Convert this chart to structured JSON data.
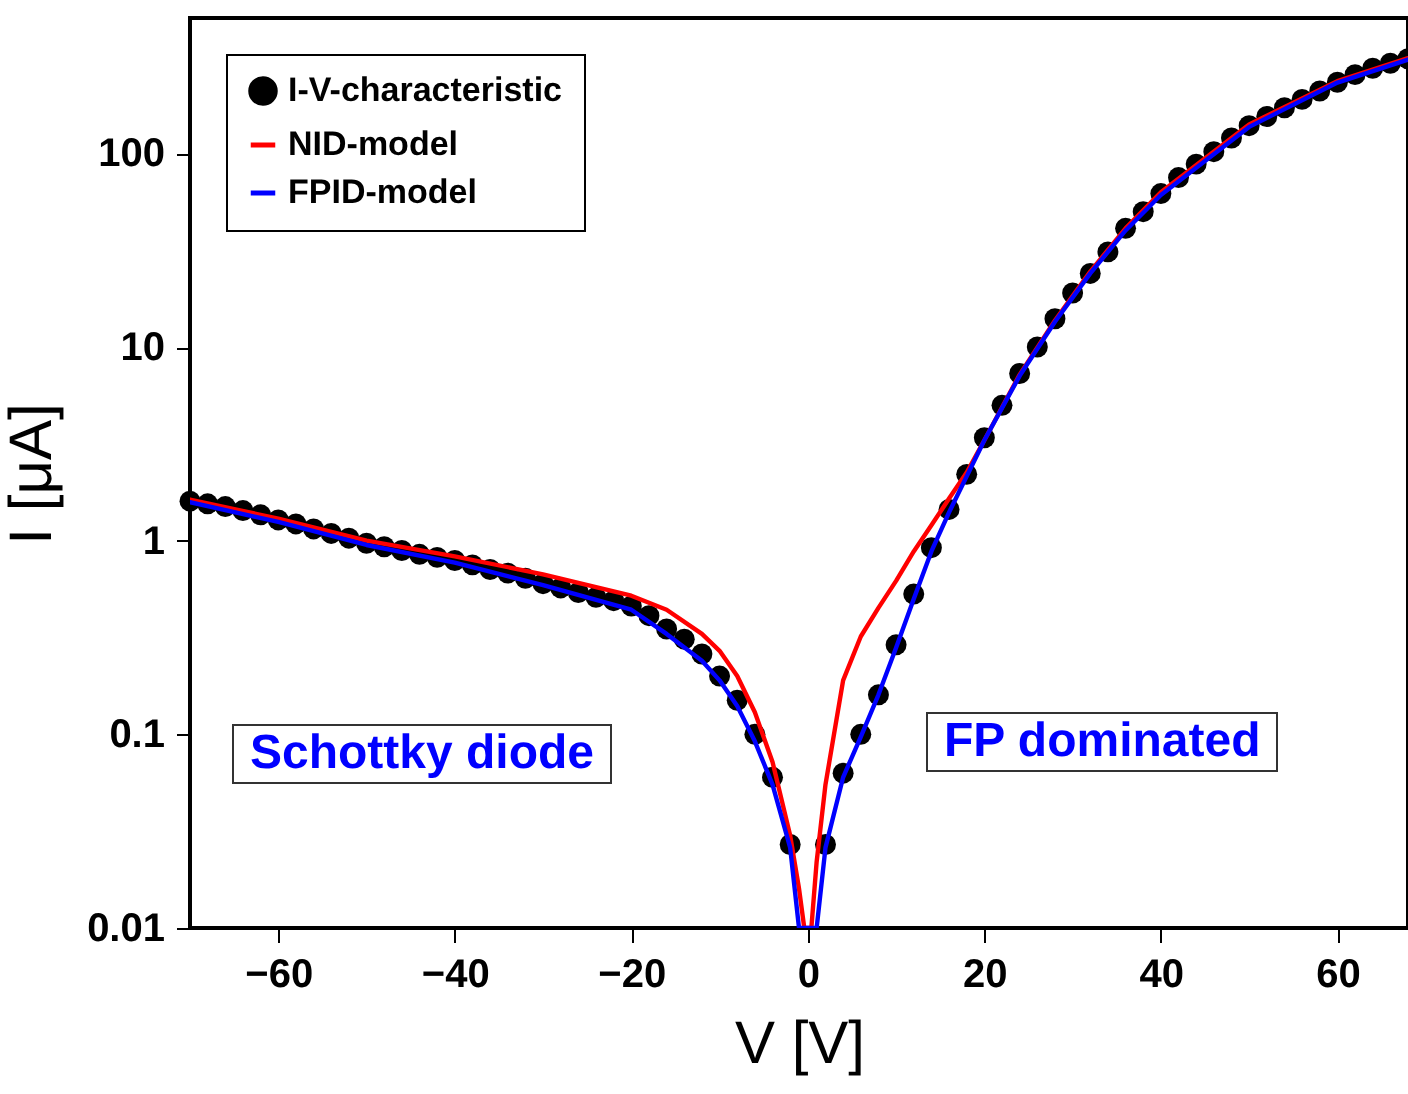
{
  "chart_data": {
    "type": "scatter",
    "xlabel": "V [V]",
    "ylabel": "I [μA]",
    "xlim": [
      -70,
      68
    ],
    "ylim": [
      0.01,
      500
    ],
    "xticks": [
      -60,
      -40,
      -20,
      0,
      20,
      40,
      60
    ],
    "yticks": [
      0.01,
      0.1,
      1,
      10,
      100
    ],
    "log": "y",
    "legend": "top left",
    "annotations": [
      "Schottky diode",
      "FP dominated"
    ],
    "series": [
      {
        "name": "I-V-characteristic",
        "marker": "circle",
        "color": "#000000",
        "x": [
          -70,
          -68,
          -66,
          -64,
          -62,
          -60,
          -58,
          -56,
          -54,
          -52,
          -50,
          -48,
          -46,
          -44,
          -42,
          -40,
          -38,
          -36,
          -34,
          -32,
          -30,
          -28,
          -26,
          -24,
          -22,
          -20,
          -18,
          -16,
          -14,
          -12,
          -10,
          -8,
          -6,
          -4,
          -2,
          2,
          4,
          6,
          8,
          10,
          12,
          14,
          16,
          18,
          20,
          22,
          24,
          26,
          28,
          30,
          32,
          34,
          36,
          38,
          40,
          42,
          44,
          46,
          48,
          50,
          52,
          54,
          56,
          58,
          60,
          62,
          64,
          66,
          68
        ],
        "values": [
          1.6,
          1.55,
          1.5,
          1.43,
          1.36,
          1.28,
          1.22,
          1.15,
          1.09,
          1.03,
          0.97,
          0.93,
          0.89,
          0.85,
          0.82,
          0.79,
          0.75,
          0.71,
          0.68,
          0.64,
          0.6,
          0.57,
          0.54,
          0.51,
          0.49,
          0.46,
          0.41,
          0.35,
          0.31,
          0.26,
          0.2,
          0.15,
          0.1,
          0.06,
          0.027,
          0.027,
          0.063,
          0.1,
          0.16,
          0.29,
          0.53,
          0.92,
          1.45,
          2.2,
          3.4,
          5,
          7.3,
          10,
          14,
          19,
          24,
          31,
          41,
          50,
          62,
          75,
          88,
          102,
          120,
          139,
          155,
          172,
          190,
          210,
          233,
          255,
          275,
          292,
          308
        ]
      },
      {
        "name": "NID-model",
        "type": "line",
        "color": "#ff0000",
        "x": [
          -70,
          -60,
          -50,
          -40,
          -30,
          -20,
          -16,
          -12,
          -10,
          -8,
          -6,
          -4,
          -2,
          -1,
          -0.4,
          0.4,
          1,
          2,
          4,
          6,
          8,
          10,
          12,
          14,
          16,
          18,
          20,
          24,
          28,
          32,
          36,
          40,
          50,
          60,
          68
        ],
        "values": [
          1.63,
          1.3,
          1.0,
          0.83,
          0.67,
          0.52,
          0.44,
          0.33,
          0.27,
          0.2,
          0.13,
          0.072,
          0.03,
          0.016,
          0.01,
          0.01,
          0.022,
          0.055,
          0.19,
          0.32,
          0.45,
          0.62,
          0.88,
          1.2,
          1.65,
          2.25,
          3.3,
          7.2,
          13.7,
          24.5,
          41,
          63,
          141,
          236,
          310
        ]
      },
      {
        "name": "FPID-model",
        "type": "line",
        "color": "#0000ff",
        "x": [
          -70,
          -60,
          -50,
          -40,
          -30,
          -20,
          -16,
          -12,
          -10,
          -8,
          -6,
          -4,
          -2,
          -1,
          1,
          2,
          4,
          6,
          8,
          10,
          12,
          14,
          16,
          20,
          24,
          28,
          32,
          36,
          40,
          50,
          60,
          68
        ],
        "values": [
          1.58,
          1.25,
          0.95,
          0.77,
          0.59,
          0.44,
          0.33,
          0.24,
          0.19,
          0.14,
          0.092,
          0.055,
          0.026,
          0.01,
          0.01,
          0.026,
          0.06,
          0.097,
          0.16,
          0.28,
          0.5,
          0.88,
          1.4,
          3.3,
          7.1,
          13.5,
          24,
          40,
          61,
          137,
          232,
          305
        ]
      }
    ]
  }
}
